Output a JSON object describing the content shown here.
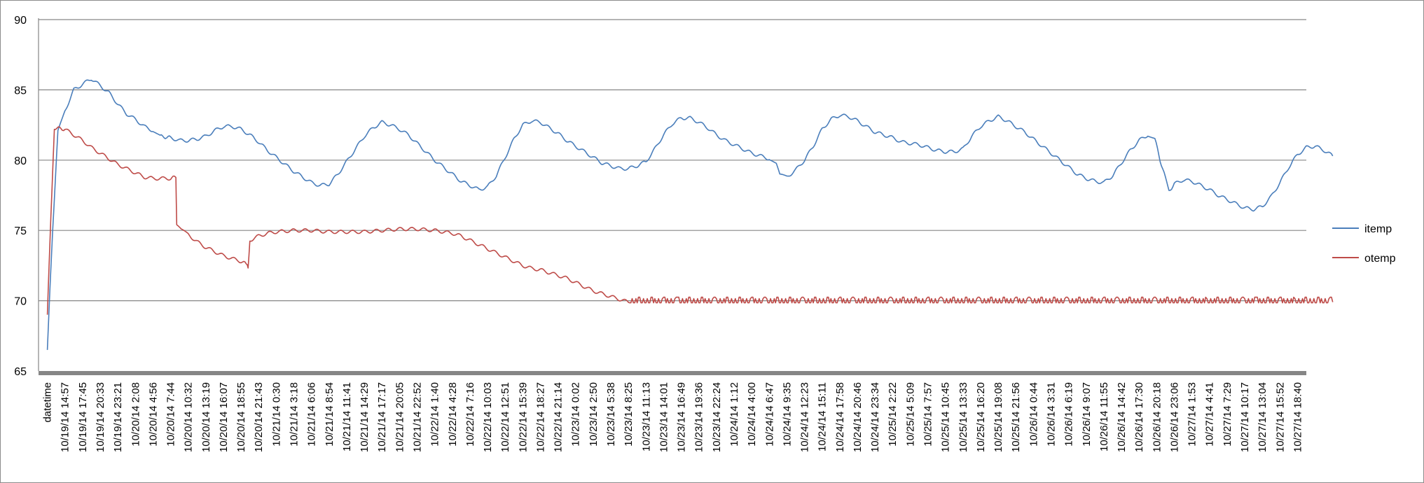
{
  "chart_data": {
    "type": "line",
    "title": "",
    "xlabel": "",
    "ylabel": "",
    "ylim": [
      65,
      90
    ],
    "yticks": [
      65,
      70,
      75,
      80,
      85,
      90
    ],
    "grid": "horizontal",
    "legend_position": "right",
    "colors": {
      "itemp": "#4a7ebb",
      "otemp": "#be4b48",
      "grid": "#868686",
      "axis": "#868686"
    },
    "x": [
      "datetime",
      "10/19/14 14:57",
      "10/19/14 17:45",
      "10/19/14 20:33",
      "10/19/14 23:21",
      "10/20/14 2:08",
      "10/20/14 4:56",
      "10/20/14 7:44",
      "10/20/14 10:32",
      "10/20/14 13:19",
      "10/20/14 16:07",
      "10/20/14 18:55",
      "10/20/14 21:43",
      "10/21/14 0:30",
      "10/21/14 3:18",
      "10/21/14 6:06",
      "10/21/14 8:54",
      "10/21/14 11:41",
      "10/21/14 14:29",
      "10/21/14 17:17",
      "10/21/14 20:05",
      "10/21/14 22:52",
      "10/22/14 1:40",
      "10/22/14 4:28",
      "10/22/14 7:16",
      "10/22/14 10:03",
      "10/22/14 12:51",
      "10/22/14 15:39",
      "10/22/14 18:27",
      "10/22/14 21:14",
      "10/23/14 0:02",
      "10/23/14 2:50",
      "10/23/14 5:38",
      "10/23/14 8:25",
      "10/23/14 11:13",
      "10/23/14 14:01",
      "10/23/14 16:49",
      "10/23/14 19:36",
      "10/23/14 22:24",
      "10/24/14 1:12",
      "10/24/14 4:00",
      "10/24/14 6:47",
      "10/24/14 9:35",
      "10/24/14 12:23",
      "10/24/14 15:11",
      "10/24/14 17:58",
      "10/24/14 20:46",
      "10/24/14 23:34",
      "10/25/14 2:22",
      "10/25/14 5:09",
      "10/25/14 7:57",
      "10/25/14 10:45",
      "10/25/14 13:33",
      "10/25/14 16:20",
      "10/25/14 19:08",
      "10/25/14 21:56",
      "10/26/14 0:44",
      "10/26/14 3:31",
      "10/26/14 6:19",
      "10/26/14 9:07",
      "10/26/14 11:55",
      "10/26/14 14:42",
      "10/26/14 17:30",
      "10/26/14 20:18",
      "10/26/14 23:06",
      "10/27/14 1:53",
      "10/27/14 4:41",
      "10/27/14 7:29",
      "10/27/14 10:17",
      "10/27/14 13:04",
      "10/27/14 15:52",
      "10/27/14 18:40"
    ],
    "series": [
      {
        "name": "itemp",
        "points": [
          [
            0,
            66.5
          ],
          [
            0.3,
            75
          ],
          [
            0.6,
            82
          ],
          [
            1,
            83.5
          ],
          [
            1.5,
            85
          ],
          [
            2,
            85.4
          ],
          [
            2.5,
            85.8
          ],
          [
            3,
            85.3
          ],
          [
            3.5,
            84.8
          ],
          [
            4,
            84
          ],
          [
            4.5,
            83.3
          ],
          [
            5,
            82.9
          ],
          [
            5.5,
            82.4
          ],
          [
            6,
            82.1
          ],
          [
            6.4,
            81.7
          ],
          [
            7,
            81.6
          ],
          [
            7.5,
            81.4
          ],
          [
            8,
            81.4
          ],
          [
            8.5,
            81.5
          ],
          [
            9,
            81.7
          ],
          [
            9.5,
            82.1
          ],
          [
            10,
            82.4
          ],
          [
            10.5,
            82.4
          ],
          [
            11,
            82.2
          ],
          [
            11.5,
            81.8
          ],
          [
            12,
            81.3
          ],
          [
            12.5,
            80.7
          ],
          [
            13,
            80.2
          ],
          [
            13.5,
            79.7
          ],
          [
            14,
            79.2
          ],
          [
            14.5,
            78.8
          ],
          [
            15,
            78.4
          ],
          [
            15.5,
            78.2
          ],
          [
            16,
            78.3
          ],
          [
            16.5,
            79
          ],
          [
            17,
            79.9
          ],
          [
            17.5,
            80.8
          ],
          [
            18,
            81.7
          ],
          [
            18.5,
            82.3
          ],
          [
            19,
            82.7
          ],
          [
            19.5,
            82.5
          ],
          [
            20,
            82.2
          ],
          [
            20.5,
            81.8
          ],
          [
            21,
            81.2
          ],
          [
            21.5,
            80.6
          ],
          [
            22,
            80
          ],
          [
            22.5,
            79.5
          ],
          [
            23,
            79
          ],
          [
            23.5,
            78.5
          ],
          [
            24,
            78.2
          ],
          [
            24.5,
            77.9
          ],
          [
            25,
            78.1
          ],
          [
            25.5,
            78.9
          ],
          [
            26,
            80.2
          ],
          [
            26.5,
            81.5
          ],
          [
            27,
            82.5
          ],
          [
            27.5,
            82.8
          ],
          [
            28,
            82.7
          ],
          [
            28.5,
            82.3
          ],
          [
            29,
            81.9
          ],
          [
            29.5,
            81.4
          ],
          [
            30,
            81
          ],
          [
            30.5,
            80.6
          ],
          [
            31,
            80.2
          ],
          [
            31.5,
            79.8
          ],
          [
            32,
            79.6
          ],
          [
            32.5,
            79.4
          ],
          [
            33,
            79.4
          ],
          [
            33.5,
            79.6
          ],
          [
            34,
            79.9
          ],
          [
            34.5,
            80.8
          ],
          [
            35,
            81.8
          ],
          [
            35.5,
            82.6
          ],
          [
            36,
            83
          ],
          [
            36.5,
            83
          ],
          [
            37,
            82.7
          ],
          [
            37.5,
            82.3
          ],
          [
            38,
            81.8
          ],
          [
            38.5,
            81.4
          ],
          [
            39,
            81.1
          ],
          [
            39.5,
            80.8
          ],
          [
            40,
            80.5
          ],
          [
            40.5,
            80.3
          ],
          [
            41,
            80.1
          ],
          [
            41.4,
            79.7
          ],
          [
            41.6,
            78.9
          ],
          [
            42,
            78.8
          ],
          [
            42.5,
            79.3
          ],
          [
            43,
            80
          ],
          [
            43.5,
            81
          ],
          [
            44,
            82.2
          ],
          [
            44.5,
            82.9
          ],
          [
            45,
            83.2
          ],
          [
            45.5,
            83.1
          ],
          [
            46,
            82.8
          ],
          [
            46.5,
            82.4
          ],
          [
            47,
            82
          ],
          [
            47.5,
            81.8
          ],
          [
            48,
            81.6
          ],
          [
            48.5,
            81.3
          ],
          [
            49,
            81.2
          ],
          [
            49.5,
            81.1
          ],
          [
            50,
            80.9
          ],
          [
            50.5,
            80.7
          ],
          [
            51,
            80.6
          ],
          [
            51.5,
            80.6
          ],
          [
            52,
            80.8
          ],
          [
            52.5,
            81.7
          ],
          [
            53,
            82.4
          ],
          [
            53.5,
            82.8
          ],
          [
            54,
            83.1
          ],
          [
            54.5,
            82.8
          ],
          [
            55,
            82.4
          ],
          [
            55.5,
            82
          ],
          [
            56,
            81.5
          ],
          [
            56.5,
            81
          ],
          [
            57,
            80.5
          ],
          [
            57.5,
            80
          ],
          [
            58,
            79.5
          ],
          [
            58.5,
            79
          ],
          [
            59,
            78.7
          ],
          [
            59.5,
            78.5
          ],
          [
            60,
            78.4
          ],
          [
            60.5,
            78.9
          ],
          [
            61,
            79.8
          ],
          [
            61.5,
            80.7
          ],
          [
            62,
            81.4
          ],
          [
            62.5,
            81.8
          ],
          [
            62.9,
            81.5
          ],
          [
            63.2,
            80
          ],
          [
            63.5,
            78.7
          ],
          [
            63.7,
            77.8
          ],
          [
            64,
            78.3
          ],
          [
            64.5,
            78.6
          ],
          [
            65,
            78.5
          ],
          [
            65.5,
            78.2
          ],
          [
            66,
            77.9
          ],
          [
            66.5,
            77.5
          ],
          [
            67,
            77.2
          ],
          [
            67.5,
            76.9
          ],
          [
            68,
            76.6
          ],
          [
            68.5,
            76.5
          ],
          [
            69,
            76.7
          ],
          [
            69.5,
            77.4
          ],
          [
            70,
            78.4
          ],
          [
            70.5,
            79.5
          ],
          [
            71,
            80.4
          ],
          [
            71.5,
            80.9
          ],
          [
            72,
            81
          ],
          [
            72.5,
            80.7
          ],
          [
            73,
            80.3
          ]
        ]
      },
      {
        "name": "otemp",
        "points": [
          [
            0,
            69
          ],
          [
            0.2,
            76
          ],
          [
            0.4,
            82.3
          ],
          [
            1,
            82.2
          ],
          [
            1.5,
            81.8
          ],
          [
            2,
            81.4
          ],
          [
            2.5,
            80.9
          ],
          [
            3,
            80.5
          ],
          [
            3.5,
            80.1
          ],
          [
            4,
            79.7
          ],
          [
            4.5,
            79.4
          ],
          [
            5,
            79.1
          ],
          [
            5.5,
            78.8
          ],
          [
            6,
            78.7
          ],
          [
            6.5,
            78.7
          ],
          [
            7,
            78.7
          ],
          [
            7.3,
            78.8
          ],
          [
            7.35,
            75.3
          ],
          [
            7.6,
            75
          ],
          [
            8,
            74.7
          ],
          [
            8.5,
            74.2
          ],
          [
            9,
            73.8
          ],
          [
            9.5,
            73.5
          ],
          [
            10,
            73.2
          ],
          [
            10.5,
            73
          ],
          [
            11,
            72.8
          ],
          [
            11.3,
            72.6
          ],
          [
            11.4,
            72.3
          ],
          [
            11.5,
            74.3
          ],
          [
            12,
            74.6
          ],
          [
            12.5,
            74.8
          ],
          [
            13,
            74.9
          ],
          [
            14,
            75
          ],
          [
            15,
            75
          ],
          [
            16,
            74.9
          ],
          [
            17,
            74.9
          ],
          [
            18,
            74.9
          ],
          [
            19,
            75
          ],
          [
            20,
            75.1
          ],
          [
            21,
            75.1
          ],
          [
            22,
            75
          ],
          [
            23,
            74.8
          ],
          [
            23.5,
            74.6
          ],
          [
            24,
            74.3
          ],
          [
            24.5,
            74
          ],
          [
            25,
            73.7
          ],
          [
            25.5,
            73.4
          ],
          [
            26,
            73.1
          ],
          [
            26.5,
            72.8
          ],
          [
            27,
            72.5
          ],
          [
            27.5,
            72.3
          ],
          [
            28,
            72.2
          ],
          [
            28.5,
            72
          ],
          [
            29,
            71.8
          ],
          [
            29.5,
            71.6
          ],
          [
            30,
            71.3
          ],
          [
            30.5,
            71
          ],
          [
            31,
            70.7
          ],
          [
            31.5,
            70.5
          ],
          [
            32,
            70.3
          ],
          [
            32.5,
            70.1
          ],
          [
            33,
            69.9
          ],
          [
            35,
            69.9
          ],
          [
            40,
            69.9
          ],
          [
            45,
            69.9
          ],
          [
            50,
            69.9
          ],
          [
            55,
            69.9
          ],
          [
            60,
            69.9
          ],
          [
            65,
            69.9
          ],
          [
            70,
            69.9
          ],
          [
            73,
            69.9
          ]
        ]
      }
    ]
  }
}
